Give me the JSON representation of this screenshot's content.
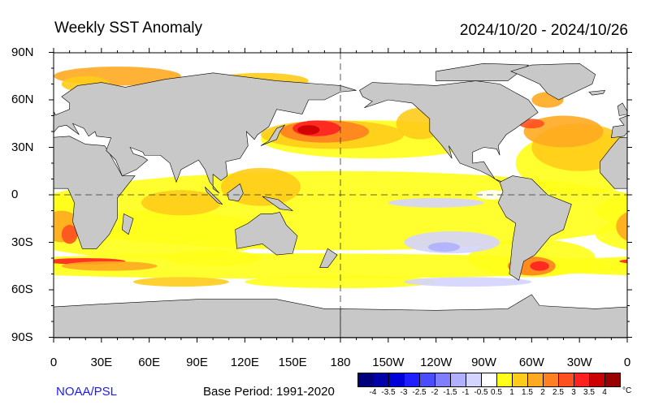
{
  "title": "Weekly SST Anomaly",
  "date_range": "2024/10/20 - 2024/10/26",
  "lat_labels": [
    "90N",
    "60N",
    "30N",
    "0",
    "30S",
    "60S",
    "90S"
  ],
  "lon_labels": [
    "0",
    "30E",
    "60E",
    "90E",
    "120E",
    "150E",
    "180",
    "150W",
    "120W",
    "90W",
    "60W",
    "30W",
    "0"
  ],
  "credit": "NOAA/PSL",
  "base_period": "Base Period: 1991-2020",
  "colorbar": {
    "unit": "°C",
    "labels": [
      "-4",
      "-3.5",
      "-3",
      "-2.5",
      "-2",
      "-1.5",
      "-1",
      "-0.5",
      "0.5",
      "1",
      "1.5",
      "2",
      "2.5",
      "3",
      "3.5",
      "4"
    ],
    "colors": [
      "#00007a",
      "#0000a8",
      "#0000d8",
      "#1e1eff",
      "#4c4cff",
      "#7e7eff",
      "#b0b0ff",
      "#d4d4ff",
      "#ffffff",
      "#ffff1a",
      "#ffcc1a",
      "#ffaa20",
      "#ff8020",
      "#ff5020",
      "#ff2020",
      "#cc0000",
      "#990000"
    ]
  },
  "land_color": "#c8c8c8"
}
